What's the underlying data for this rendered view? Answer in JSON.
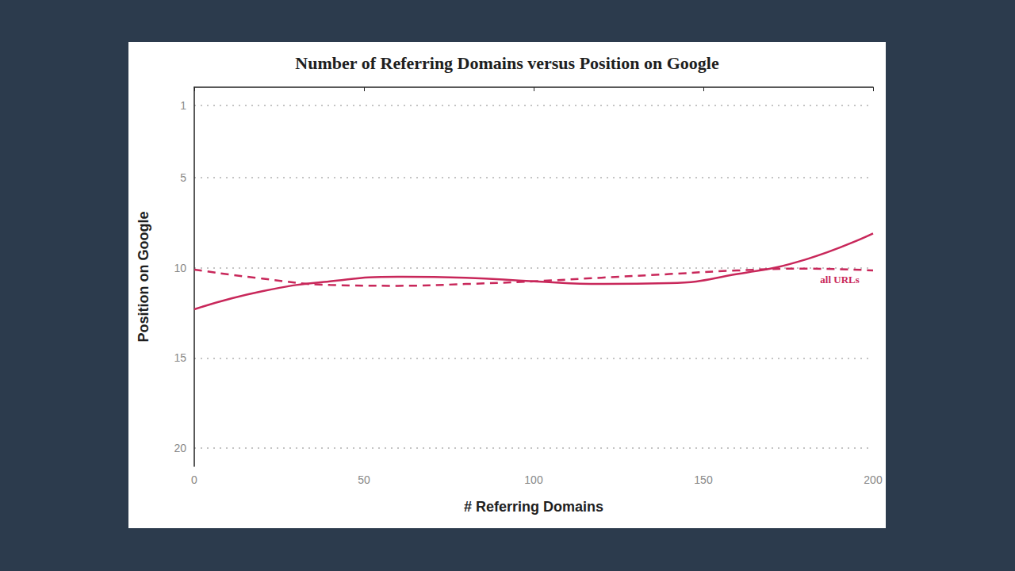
{
  "chart_data": {
    "type": "line",
    "title": "Number of Referring Domains versus Position on Google",
    "x_label": "# Referring Domains",
    "y_label": "Position on Google",
    "x": [
      0,
      20,
      40,
      60,
      80,
      100,
      120,
      140,
      160,
      180,
      200
    ],
    "series": [
      {
        "color": "#c8275a",
        "line_style": "solid",
        "values": [
          12.3,
          11.3,
          10.75,
          10.5,
          10.55,
          10.75,
          10.9,
          10.85,
          10.35,
          9.55,
          8.1
        ]
      },
      {
        "name": "all URLs",
        "color": "#c8275a",
        "line_style": "dashed",
        "values": [
          10.1,
          10.6,
          10.95,
          11.0,
          10.9,
          10.75,
          10.55,
          10.35,
          10.15,
          10.05,
          10.15
        ]
      }
    ],
    "xlim": [
      0,
      200
    ],
    "xticks": [
      0,
      50,
      100,
      150,
      200
    ],
    "ylim": [
      21,
      0
    ],
    "yticks": [
      1,
      5,
      10,
      15,
      20
    ],
    "grid": true
  }
}
